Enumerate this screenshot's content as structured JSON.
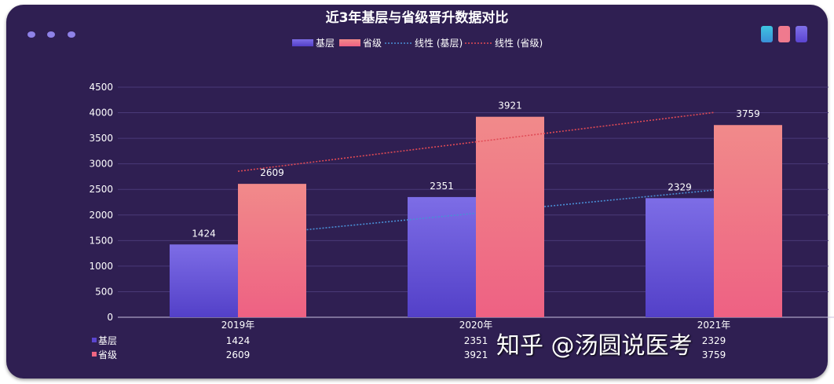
{
  "chart_data": {
    "type": "bar",
    "title": "近3年基层与省级晋升数据对比",
    "categories": [
      "2019年",
      "2020年",
      "2021年"
    ],
    "series": [
      {
        "name": "基层",
        "values": [
          1424,
          2351,
          2329
        ],
        "color": "#5b45d0"
      },
      {
        "name": "省级",
        "values": [
          2609,
          3921,
          3759
        ],
        "color": "#ef6582"
      }
    ],
    "trendlines": [
      {
        "name": "线性 (基层)",
        "color": "#4a8fd6"
      },
      {
        "name": "线性 (省级)",
        "color": "#e04a55"
      }
    ],
    "ylim": [
      0,
      4500
    ],
    "yticks": [
      0,
      500,
      1000,
      1500,
      2000,
      2500,
      3000,
      3500,
      4000,
      4500
    ],
    "grid": true,
    "legend": "top",
    "data_table": true
  },
  "watermark": "知乎 @汤圆说医考"
}
